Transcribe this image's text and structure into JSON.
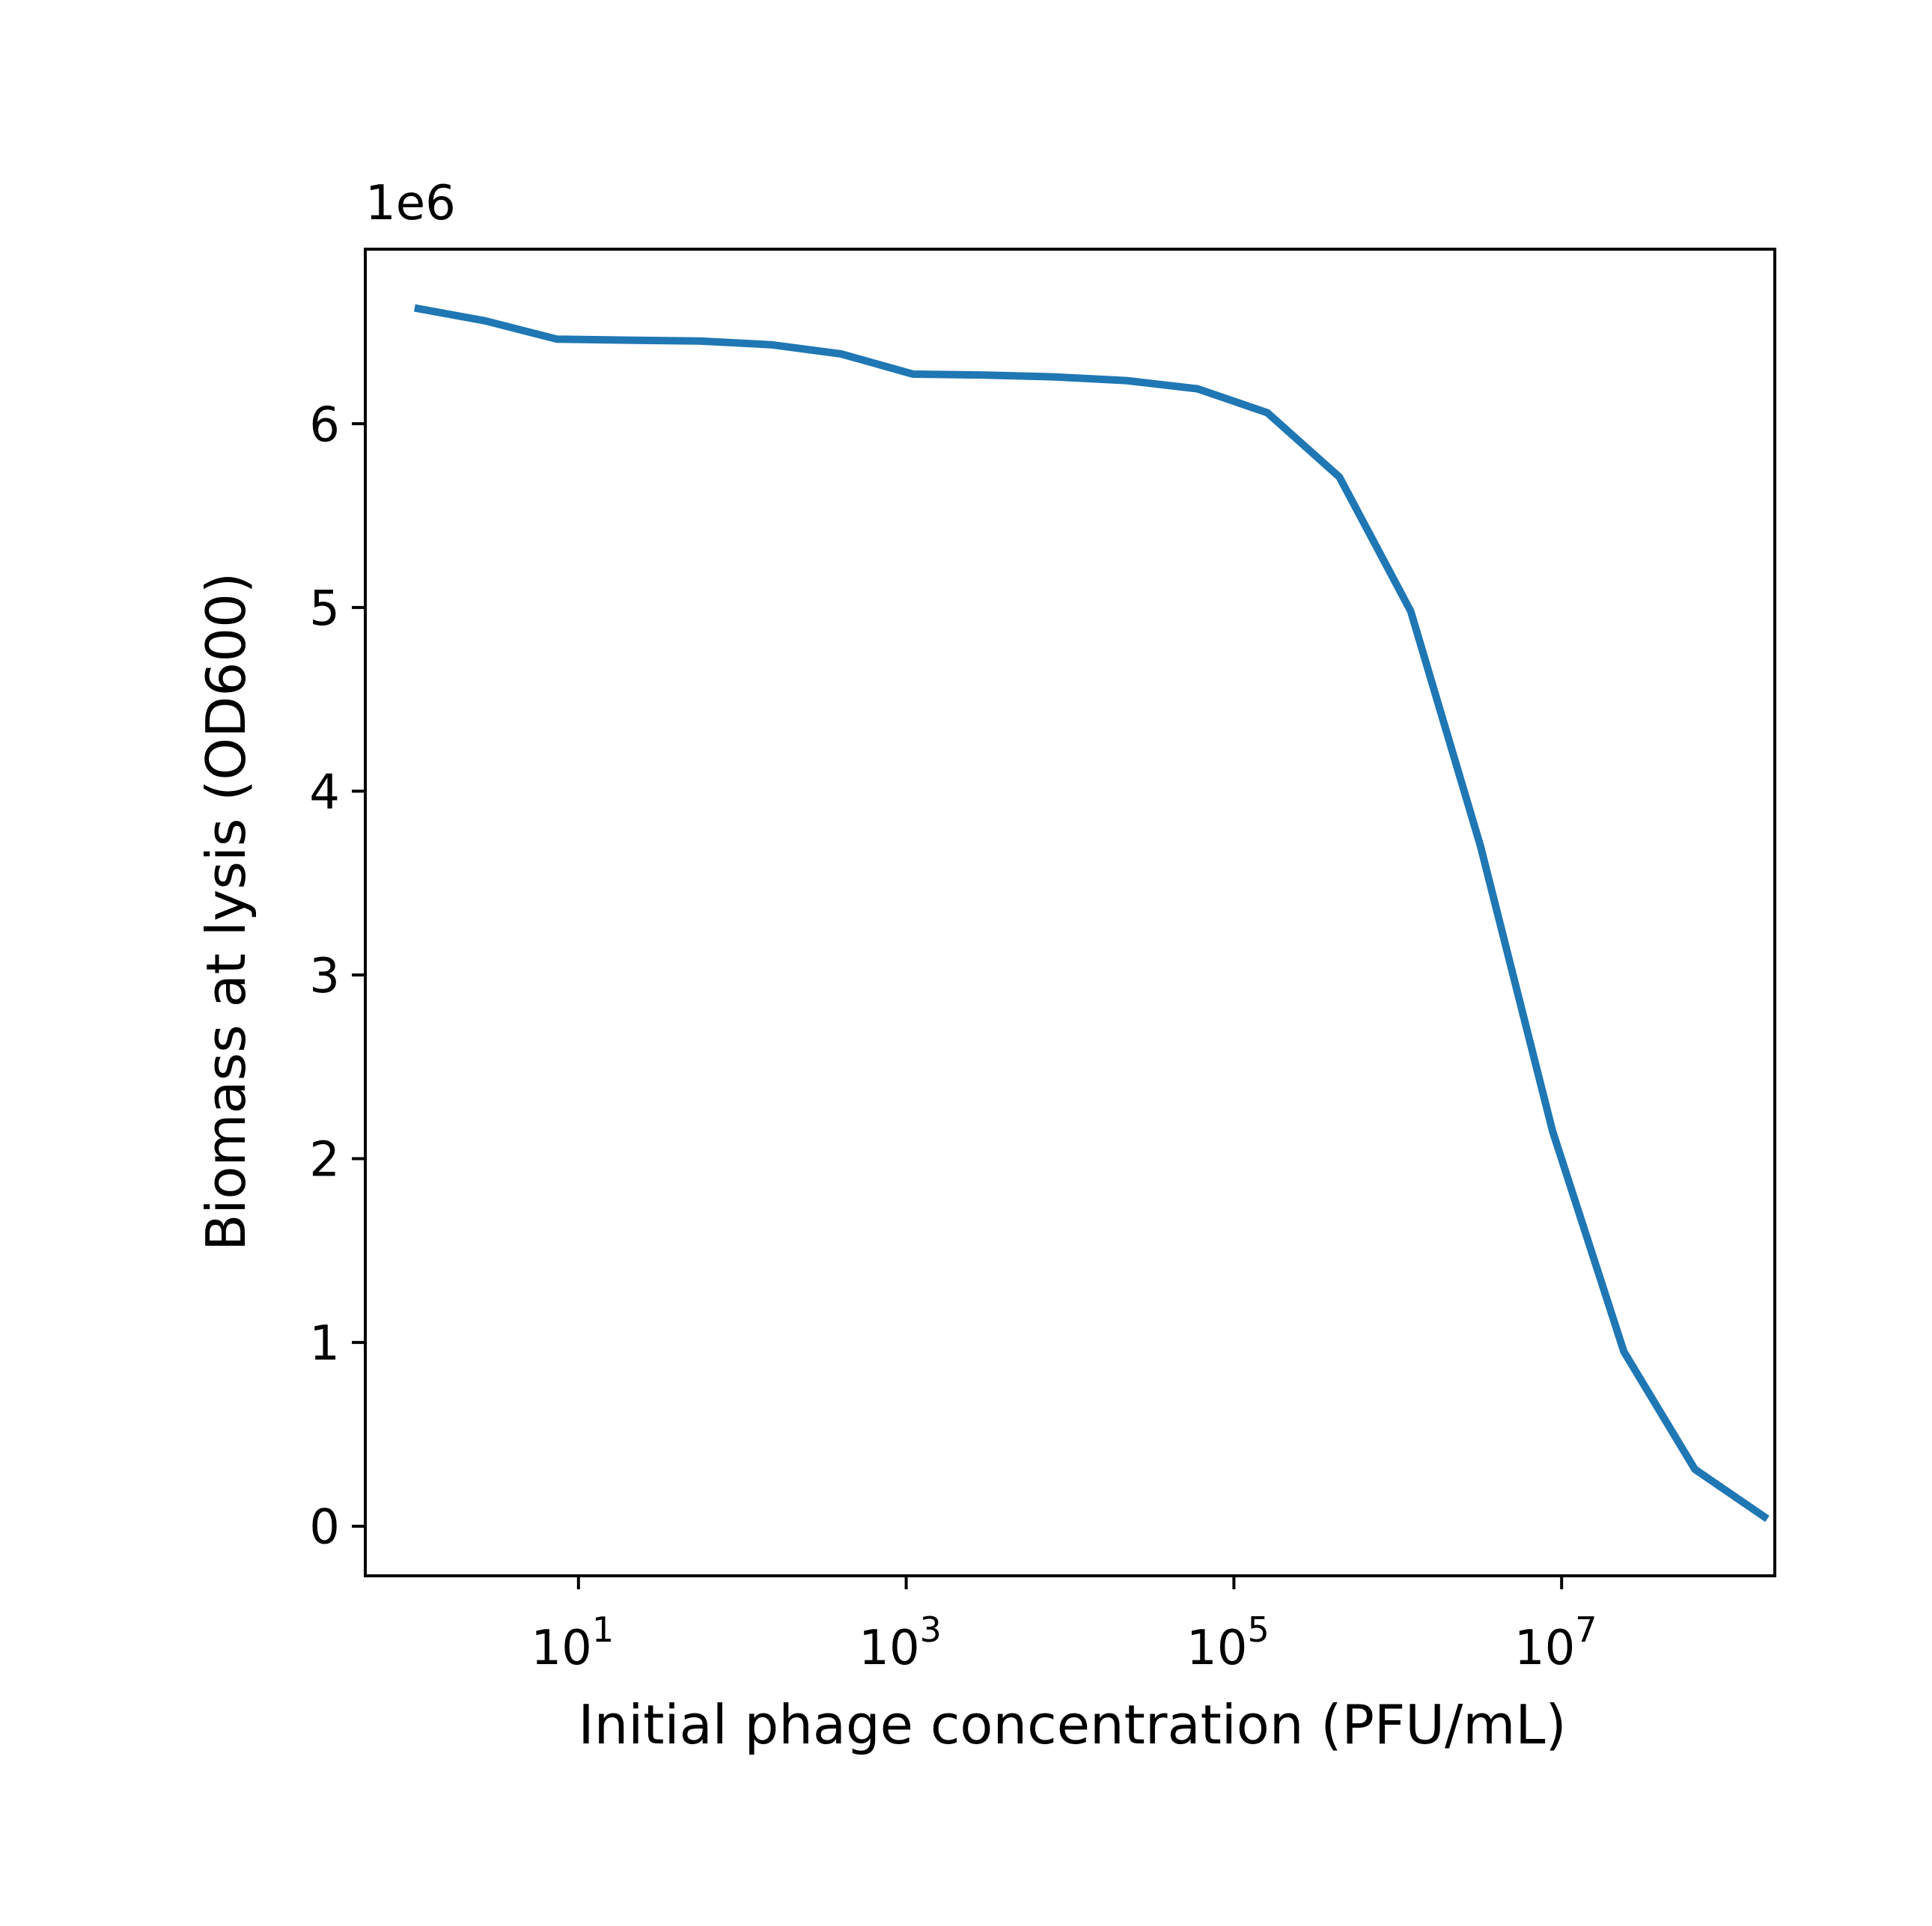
{
  "chart_data": {
    "type": "line",
    "title": "",
    "xlabel": "Initial phage concentration (PFU/mL)",
    "ylabel": "Biomass at lysis (OD600)",
    "xscale": "log",
    "yscale": "linear",
    "xlim": [
      0.5,
      200000000
    ],
    "ylim": [
      -270000,
      6950000
    ],
    "y_offset_label": "1e6",
    "grid": false,
    "legend": "none",
    "x_ticks": [
      {
        "value": 10,
        "base": "10",
        "exp": "1"
      },
      {
        "value": 1000,
        "base": "10",
        "exp": "3"
      },
      {
        "value": 100000,
        "base": "10",
        "exp": "5"
      },
      {
        "value": 10000000,
        "base": "10",
        "exp": "7"
      }
    ],
    "y_ticks": [
      {
        "value": 0,
        "label": "0"
      },
      {
        "value": 1000000,
        "label": "1"
      },
      {
        "value": 2000000,
        "label": "2"
      },
      {
        "value": 3000000,
        "label": "3"
      },
      {
        "value": 4000000,
        "label": "4"
      },
      {
        "value": 5000000,
        "label": "5"
      },
      {
        "value": 6000000,
        "label": "6"
      }
    ],
    "series": [
      {
        "color": "#1f77b4",
        "x": [
          1,
          2.7,
          7.4,
          20,
          55,
          150,
          400,
          1100,
          3000,
          8100,
          22000,
          60000,
          160000,
          440000,
          1200000,
          3200000,
          8800000,
          24000000,
          65000000,
          180000000
        ],
        "y": [
          6630000,
          6560000,
          6460000,
          6455000,
          6450000,
          6430000,
          6380000,
          6270000,
          6265000,
          6255000,
          6235000,
          6190000,
          6060000,
          5710000,
          4980000,
          3700000,
          2150000,
          950000,
          310000,
          40000
        ]
      }
    ]
  }
}
